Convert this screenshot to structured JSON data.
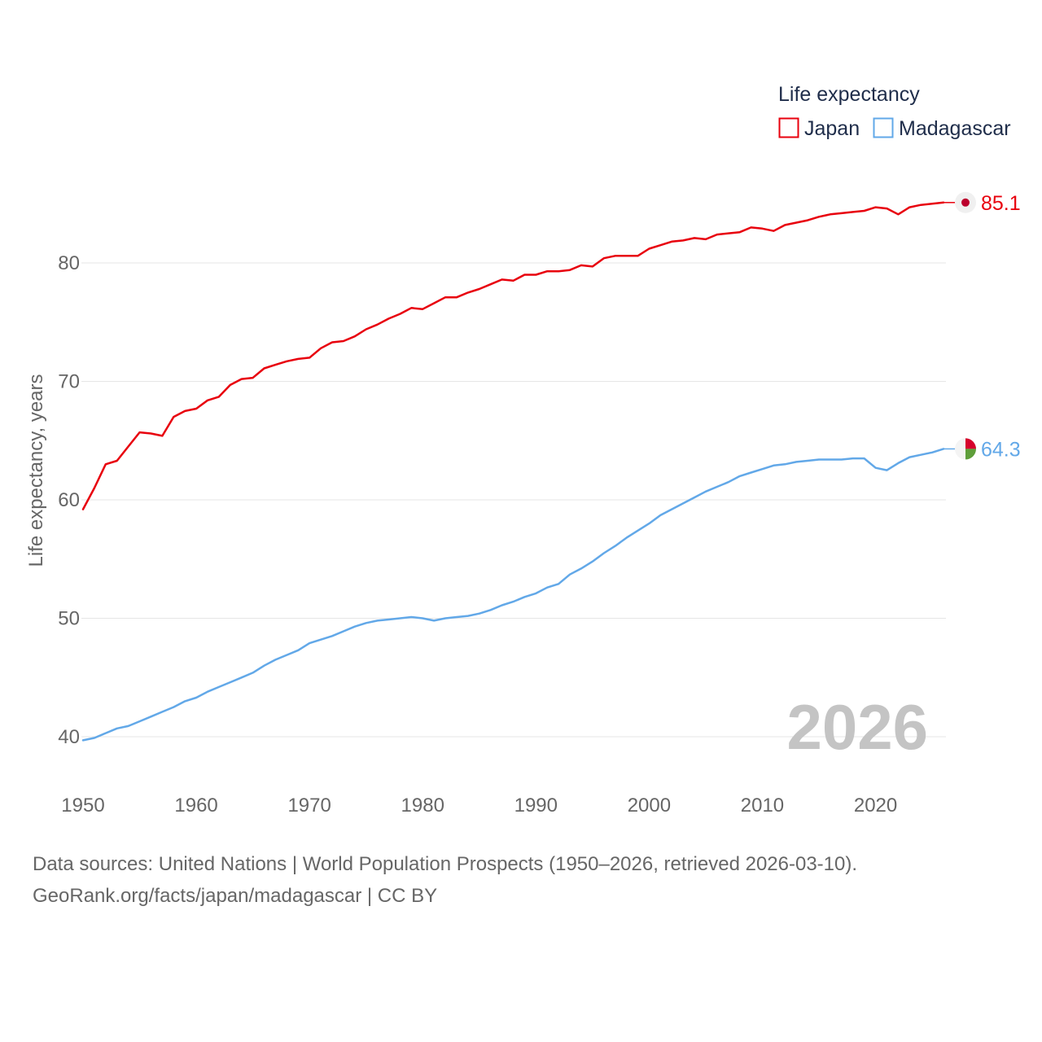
{
  "chart_data": {
    "type": "line",
    "legend_title": "Life expectancy",
    "ylabel": "Life expectancy, years",
    "xlim": [
      1950,
      2026
    ],
    "ylim": [
      37,
      88
    ],
    "yticks": [
      40,
      50,
      60,
      70,
      80
    ],
    "xticks": [
      1950,
      1960,
      1970,
      1980,
      1990,
      2000,
      2010,
      2020
    ],
    "year_label": "2026",
    "x": [
      1950,
      1951,
      1952,
      1953,
      1954,
      1955,
      1956,
      1957,
      1958,
      1959,
      1960,
      1961,
      1962,
      1963,
      1964,
      1965,
      1966,
      1967,
      1968,
      1969,
      1970,
      1971,
      1972,
      1973,
      1974,
      1975,
      1976,
      1977,
      1978,
      1979,
      1980,
      1981,
      1982,
      1983,
      1984,
      1985,
      1986,
      1987,
      1988,
      1989,
      1990,
      1991,
      1992,
      1993,
      1994,
      1995,
      1996,
      1997,
      1998,
      1999,
      2000,
      2001,
      2002,
      2003,
      2004,
      2005,
      2006,
      2007,
      2008,
      2009,
      2010,
      2011,
      2012,
      2013,
      2014,
      2015,
      2016,
      2017,
      2018,
      2019,
      2020,
      2021,
      2022,
      2023,
      2024,
      2025,
      2026
    ],
    "series": [
      {
        "name": "Japan",
        "color": "#e8000d",
        "end_label": "85.1",
        "values": [
          59.2,
          61.0,
          63.0,
          63.3,
          64.5,
          65.7,
          65.6,
          65.4,
          67.0,
          67.5,
          67.7,
          68.4,
          68.7,
          69.7,
          70.2,
          70.3,
          71.1,
          71.4,
          71.7,
          71.9,
          72.0,
          72.8,
          73.3,
          73.4,
          73.8,
          74.4,
          74.8,
          75.3,
          75.7,
          76.2,
          76.1,
          76.6,
          77.1,
          77.1,
          77.5,
          77.8,
          78.2,
          78.6,
          78.5,
          79.0,
          79.0,
          79.3,
          79.3,
          79.4,
          79.8,
          79.7,
          80.4,
          80.6,
          80.6,
          80.6,
          81.2,
          81.5,
          81.8,
          81.9,
          82.1,
          82.0,
          82.4,
          82.5,
          82.6,
          83.0,
          82.9,
          82.7,
          83.2,
          83.4,
          83.6,
          83.9,
          84.1,
          84.2,
          84.3,
          84.4,
          84.7,
          84.6,
          84.1,
          84.7,
          84.9,
          85.0,
          85.1
        ]
      },
      {
        "name": "Madagascar",
        "color": "#62a8e8",
        "end_label": "64.3",
        "values": [
          39.7,
          39.9,
          40.3,
          40.7,
          40.9,
          41.3,
          41.7,
          42.1,
          42.5,
          43.0,
          43.3,
          43.8,
          44.2,
          44.6,
          45.0,
          45.4,
          46.0,
          46.5,
          46.9,
          47.3,
          47.9,
          48.2,
          48.5,
          48.9,
          49.3,
          49.6,
          49.8,
          49.9,
          50.0,
          50.1,
          50.0,
          49.8,
          50.0,
          50.1,
          50.2,
          50.4,
          50.7,
          51.1,
          51.4,
          51.8,
          52.1,
          52.6,
          52.9,
          53.7,
          54.2,
          54.8,
          55.5,
          56.1,
          56.8,
          57.4,
          58.0,
          58.7,
          59.2,
          59.7,
          60.2,
          60.7,
          61.1,
          61.5,
          62.0,
          62.3,
          62.6,
          62.9,
          63.0,
          63.2,
          63.3,
          63.4,
          63.4,
          63.4,
          63.5,
          63.5,
          62.7,
          62.5,
          63.1,
          63.6,
          63.8,
          64.0,
          64.3
        ]
      }
    ]
  },
  "source_line_1": "Data sources: United Nations | World Population Prospects (1950–2026, retrieved 2026-03-10).",
  "source_line_2": "GeoRank.org/facts/japan/madagascar | CC BY"
}
